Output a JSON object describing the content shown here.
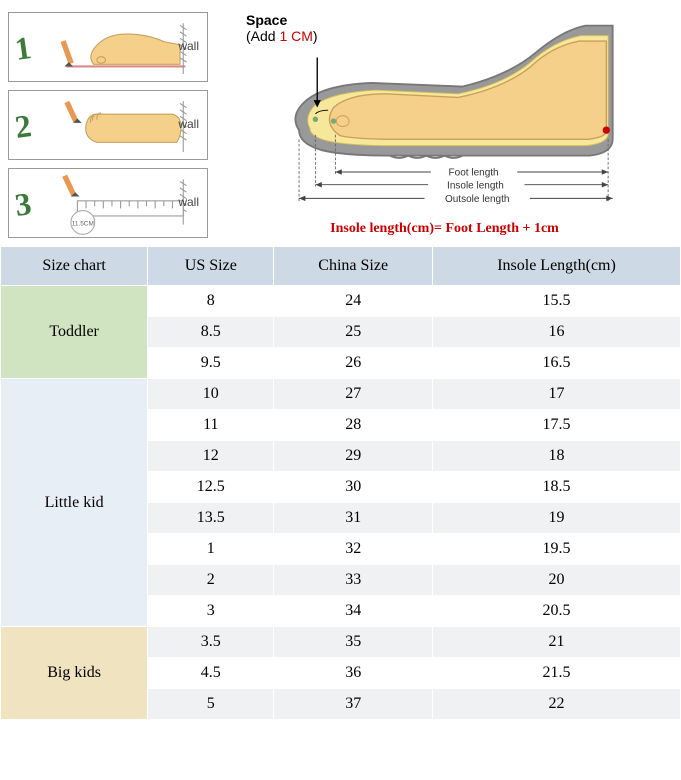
{
  "steps": {
    "wall_label": "wall",
    "ruler_text": "11.5CM"
  },
  "diagram": {
    "space_title": "Space",
    "space_sub_prefix": "(Add ",
    "space_sub_red": "1 CM",
    "space_sub_suffix": ")",
    "foot_length": "Foot length",
    "insole_length": "Insole length",
    "outsole_length": "Outsole length",
    "formula": "Insole length(cm)= Foot Length + 1cm"
  },
  "table": {
    "headers": [
      "Size chart",
      "US Size",
      "China Size",
      "Insole Length(cm)"
    ],
    "groups": [
      {
        "category": "Toddler",
        "bg_class": "toddler-bg",
        "rows": [
          {
            "us": "8",
            "cn": "24",
            "insole": "15.5"
          },
          {
            "us": "8.5",
            "cn": "25",
            "insole": "16"
          },
          {
            "us": "9.5",
            "cn": "26",
            "insole": "16.5"
          }
        ]
      },
      {
        "category": "Little kid",
        "bg_class": "little-bg",
        "rows": [
          {
            "us": "10",
            "cn": "27",
            "insole": "17"
          },
          {
            "us": "11",
            "cn": "28",
            "insole": "17.5"
          },
          {
            "us": "12",
            "cn": "29",
            "insole": "18"
          },
          {
            "us": "12.5",
            "cn": "30",
            "insole": "18.5"
          },
          {
            "us": "13.5",
            "cn": "31",
            "insole": "19"
          },
          {
            "us": "1",
            "cn": "32",
            "insole": "19.5"
          },
          {
            "us": "2",
            "cn": "33",
            "insole": "20"
          },
          {
            "us": "3",
            "cn": "34",
            "insole": "20.5"
          }
        ]
      },
      {
        "category": "Big kids",
        "bg_class": "big-bg",
        "rows": [
          {
            "us": "3.5",
            "cn": "35",
            "insole": "21"
          },
          {
            "us": "4.5",
            "cn": "36",
            "insole": "21.5"
          },
          {
            "us": "5",
            "cn": "37",
            "insole": "22"
          }
        ]
      }
    ]
  }
}
